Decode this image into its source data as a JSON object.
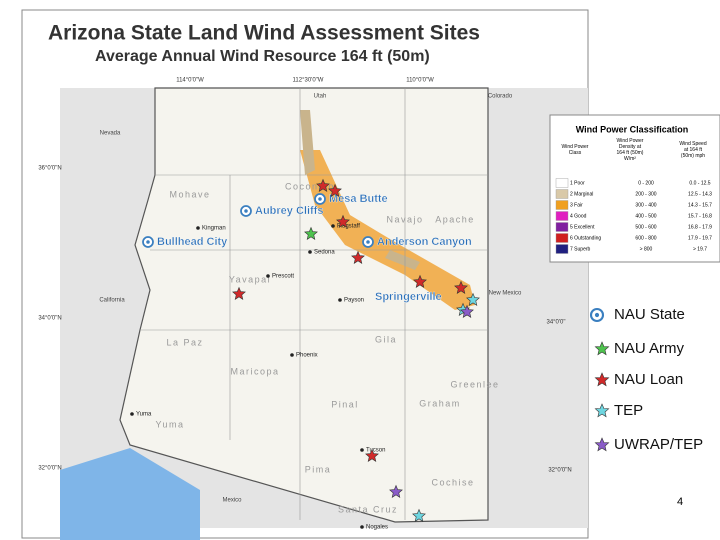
{
  "title": "Arizona State Land Wind Assessment Sites",
  "subtitle": "Average Annual Wind Resource 164 ft (50m)",
  "graticule": [
    "114°0'0\"W",
    "112°30'0\"W",
    "110°0'0\"W",
    "36°0'0\"N",
    "34°0'0\"N",
    "32°0'0\"N",
    "34°0'0\"",
    "32°0'0\"N"
  ],
  "states": [
    "Nevada",
    "Utah",
    "Colorado",
    "California",
    "New Mexico",
    "Mexico"
  ],
  "counties": [
    "Mohave",
    "Coconino",
    "Navajo",
    "Apache",
    "Yavapai",
    "La Paz",
    "Maricopa",
    "Gila",
    "Greenlee",
    "Graham",
    "Yuma",
    "Pinal",
    "Pima",
    "Cochise",
    "Santa Cruz"
  ],
  "cities": [
    "Kingman",
    "Flagstaff",
    "Sedona",
    "Prescott",
    "Payson",
    "Phoenix",
    "Yuma",
    "Tucson",
    "Nogales"
  ],
  "sites": [
    "Mesa Butte",
    "Aubrey Cliffs",
    "Bullhead City",
    "Anderson Canyon",
    "Springerville"
  ],
  "wind_table": {
    "title": "Wind Power Classification",
    "headers": [
      "Wind Power Class",
      "Wind Power Density at 164 ft (50m) W/m²",
      "Wind Speed at 164 ft (50m) mph"
    ],
    "rows": [
      [
        "1 Poor",
        "0 - 200",
        "0.0 - 12.5"
      ],
      [
        "2 Marginal",
        "200 - 300",
        "12.5 - 14.3"
      ],
      [
        "3 Fair",
        "300 - 400",
        "14.3 - 15.7"
      ],
      [
        "4 Good",
        "400 - 500",
        "15.7 - 16.8"
      ],
      [
        "5 Excellent",
        "500 - 600",
        "16.8 - 17.9"
      ],
      [
        "6 Outstanding",
        "600 - 800",
        "17.9 - 19.7"
      ],
      [
        "7 Superb",
        "> 800",
        "> 19.7"
      ]
    ]
  },
  "legend": [
    "NAU State",
    "NAU Army",
    "NAU Loan",
    "TEP",
    "UWRAP/TEP"
  ],
  "page_number": "4"
}
